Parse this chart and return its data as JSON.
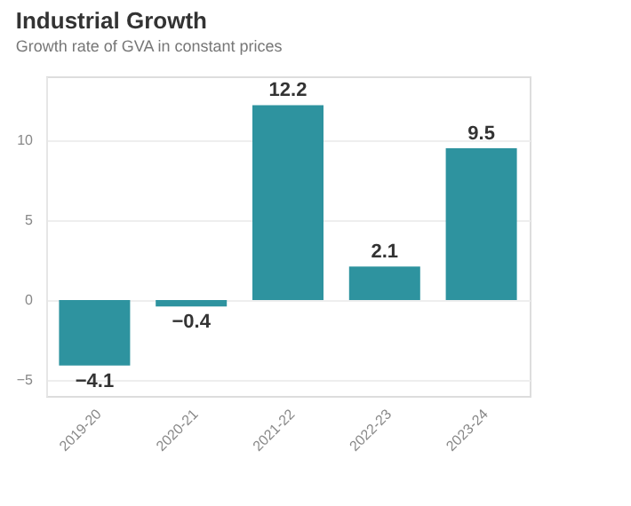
{
  "chart_data": {
    "type": "bar",
    "title": "Industrial Growth",
    "subtitle": "Growth rate of GVA in constant prices",
    "categories": [
      "2019-20",
      "2020-21",
      "2021-22",
      "2022-23",
      "2023-24"
    ],
    "values": [
      -4.1,
      -0.4,
      12.2,
      2.1,
      9.5
    ],
    "color": "#2e939f",
    "ylim": [
      -6,
      14
    ],
    "yticks": [
      -5,
      0,
      5,
      10
    ],
    "grid": "y",
    "data_labels": true
  }
}
